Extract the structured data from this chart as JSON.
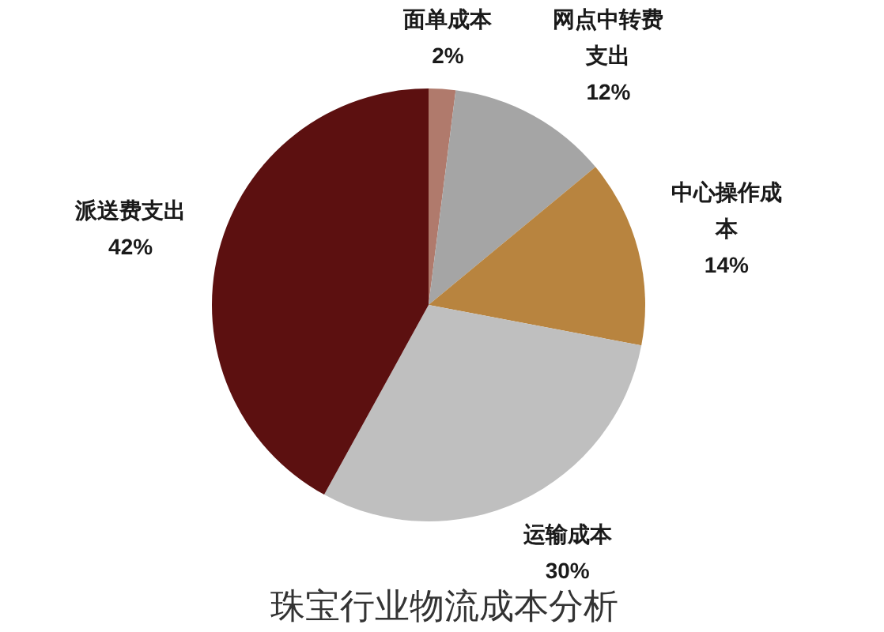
{
  "chart_data": {
    "type": "pie",
    "title": "珠宝行业物流成本分析",
    "categories": [
      "面单成本",
      "网点中转费支出",
      "中心操作成本",
      "运输成本",
      "派送费支出"
    ],
    "values": [
      2,
      12,
      14,
      30,
      42
    ],
    "colors": [
      "#b07a6c",
      "#a5a5a5",
      "#b8843f",
      "#bfbfbf",
      "#5c1010"
    ],
    "value_labels": [
      "2%",
      "12%",
      "14%",
      "30%",
      "42%"
    ]
  }
}
